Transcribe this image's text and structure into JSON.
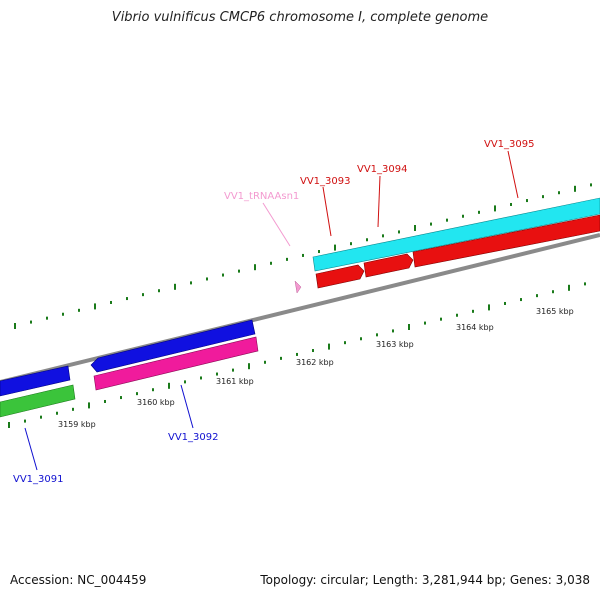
{
  "title": "Vibrio vulnificus CMCP6 chromosome I, complete genome",
  "footer": {
    "accession": "Accession: NC_004459",
    "topology": "Topology: circular; Length: 3,281,944 bp; Genes: 3,038"
  },
  "colors": {
    "backbone": "#8a8a8a",
    "tick": "#1a7a1a",
    "cyan": "#22e6f0",
    "red": "#e81010",
    "blue": "#1010e0",
    "magenta": "#f01b9c",
    "green": "#3bc43b",
    "trna": "#f39ad0"
  },
  "ticks": [
    {
      "label": "3159 kbp"
    },
    {
      "label": "3160 kbp"
    },
    {
      "label": "3161 kbp"
    },
    {
      "label": "3162 kbp"
    },
    {
      "label": "3163 kbp"
    },
    {
      "label": "3164 kbp"
    },
    {
      "label": "3165 kbp"
    }
  ],
  "genes": [
    {
      "label": "VV1_3091",
      "color": "#1010d0"
    },
    {
      "label": "VV1_3092",
      "color": "#1010d0"
    },
    {
      "label": "VV1_tRNAAsn1",
      "color": "#f39ad0"
    },
    {
      "label": "VV1_3093",
      "color": "#d01010"
    },
    {
      "label": "VV1_3094",
      "color": "#d01010"
    },
    {
      "label": "VV1_3095",
      "color": "#d01010"
    }
  ]
}
